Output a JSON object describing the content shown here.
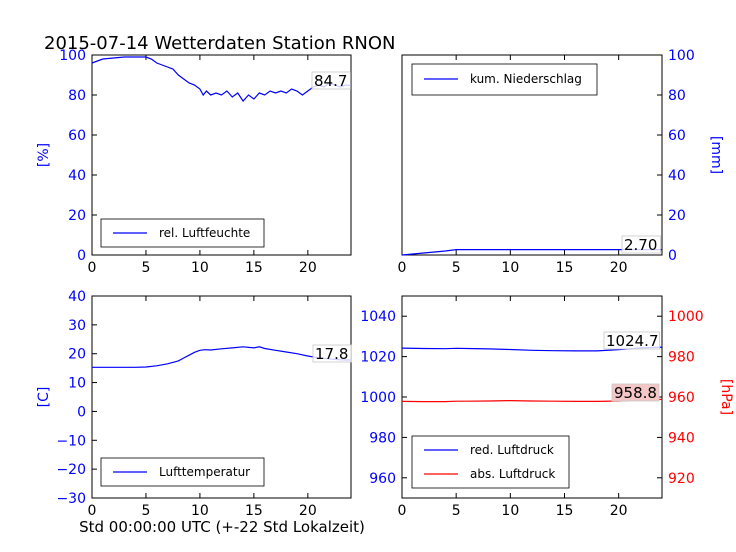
{
  "title": "2015-07-14 Wetterdaten Station RNON",
  "xlabel": "Std 00:00:00 UTC (+-22 Std Lokalzeit)",
  "colors": {
    "blue": "#0000ff",
    "red": "#ff0000",
    "axis": "#000000",
    "label_box_red": "#f4c6c6"
  },
  "chart_data": [
    {
      "type": "line",
      "panel": "top-left",
      "xlim": [
        0,
        24
      ],
      "x_ticks": [
        "0",
        "5",
        "10",
        "15",
        "20"
      ],
      "ylim": [
        0,
        100
      ],
      "y_ticks": [
        "0",
        "20",
        "40",
        "60",
        "80",
        "100"
      ],
      "ylabel": "[%]",
      "y_axis_side": "left",
      "legend_placement": "bottom-left",
      "series": [
        {
          "name": "rel. Luftfeuchte",
          "color": "#0000ff",
          "x": [
            0,
            0.5,
            1,
            2,
            3,
            4,
            5,
            5.5,
            6,
            7,
            7.5,
            8,
            8.5,
            9,
            9.5,
            10,
            10.3,
            10.6,
            11,
            11.5,
            12,
            12.5,
            13,
            13.5,
            14,
            14.5,
            15,
            15.5,
            16,
            16.5,
            17,
            17.5,
            18,
            18.5,
            19,
            19.5,
            20,
            20.5,
            21,
            21.5,
            22,
            22.5,
            23,
            23.5,
            24
          ],
          "y": [
            96,
            97,
            98,
            98.5,
            99,
            99,
            99,
            98,
            96,
            94,
            93,
            90,
            88,
            86,
            85,
            83,
            80,
            82,
            80,
            81,
            80,
            82,
            79,
            81,
            77,
            80,
            78,
            81,
            80,
            82,
            81,
            82,
            81,
            83,
            82,
            80,
            82,
            84,
            85,
            84,
            86,
            85,
            84,
            85,
            84.7
          ]
        }
      ],
      "end_label": "84.7"
    },
    {
      "type": "line",
      "panel": "top-right",
      "xlim": [
        0,
        24
      ],
      "x_ticks": [
        "0",
        "5",
        "10",
        "15",
        "20"
      ],
      "ylim": [
        0,
        100
      ],
      "y_ticks": [
        "0",
        "20",
        "40",
        "60",
        "80",
        "100"
      ],
      "ylabel": "[mm]",
      "y_axis_side": "right",
      "legend_placement": "top-left",
      "series": [
        {
          "name": "kum. Niederschlag",
          "color": "#0000ff",
          "x": [
            0,
            1,
            2,
            3,
            4,
            5,
            6,
            10,
            15,
            20,
            24
          ],
          "y": [
            0,
            0.5,
            1.0,
            1.5,
            2.0,
            2.7,
            2.7,
            2.7,
            2.7,
            2.7,
            2.7
          ]
        }
      ],
      "end_label": "2.70"
    },
    {
      "type": "line",
      "panel": "bottom-left",
      "xlim": [
        0,
        24
      ],
      "x_ticks": [
        "0",
        "5",
        "10",
        "15",
        "20"
      ],
      "ylim": [
        -30,
        40
      ],
      "y_ticks": [
        "−30",
        "−20",
        "−10",
        "0",
        "10",
        "20",
        "30",
        "40"
      ],
      "ylabel": "[C]",
      "y_axis_side": "left",
      "legend_placement": "bottom-left",
      "series": [
        {
          "name": "Lufttemperatur",
          "color": "#0000ff",
          "x": [
            0,
            1,
            2,
            3,
            4,
            5,
            6,
            7,
            8,
            8.5,
            9,
            9.5,
            10,
            10.5,
            11,
            12,
            13,
            14,
            15,
            15.5,
            16,
            17,
            18,
            19,
            20,
            21,
            22,
            23,
            24
          ],
          "y": [
            15.3,
            15.3,
            15.3,
            15.3,
            15.3,
            15.4,
            15.8,
            16.5,
            17.5,
            18.5,
            19.5,
            20.5,
            21.2,
            21.4,
            21.3,
            21.7,
            22.0,
            22.4,
            22.0,
            22.4,
            21.8,
            21.2,
            20.6,
            20.0,
            19.2,
            18.6,
            18.2,
            17.9,
            17.8
          ]
        }
      ],
      "end_label": "17.8"
    },
    {
      "type": "line",
      "panel": "bottom-right",
      "xlim": [
        0,
        24
      ],
      "x_ticks": [
        "0",
        "5",
        "10",
        "15",
        "20"
      ],
      "ylim_left": [
        950,
        1050
      ],
      "y_ticks_left": [
        "960",
        "980",
        "1000",
        "1020",
        "1040"
      ],
      "ylim_right": [
        910,
        1010
      ],
      "y_ticks_right": [
        "920",
        "940",
        "960",
        "980",
        "1000"
      ],
      "ylabel_right": "[hPa]",
      "legend_placement": "bottom-left",
      "series": [
        {
          "name": "red. Luftdruck",
          "color": "#0000ff",
          "axis": "left",
          "x": [
            0,
            2,
            4,
            5,
            6,
            8,
            10,
            12,
            14,
            16,
            18,
            20,
            22,
            24
          ],
          "y": [
            1024.2,
            1024.0,
            1023.9,
            1024.1,
            1024.0,
            1023.8,
            1023.5,
            1023.1,
            1022.9,
            1022.8,
            1022.8,
            1023.4,
            1024.3,
            1024.7
          ]
        },
        {
          "name": "abs. Luftdruck",
          "color": "#ff0000",
          "axis": "right",
          "x": [
            0,
            2,
            4,
            5,
            6,
            8,
            10,
            12,
            14,
            16,
            18,
            20,
            22,
            24
          ],
          "y": [
            957.8,
            957.7,
            957.7,
            957.9,
            957.9,
            958.0,
            958.2,
            958.0,
            957.9,
            957.8,
            957.8,
            958.0,
            958.5,
            958.8
          ]
        }
      ],
      "end_labels": [
        "1024.7",
        "958.8"
      ]
    }
  ]
}
